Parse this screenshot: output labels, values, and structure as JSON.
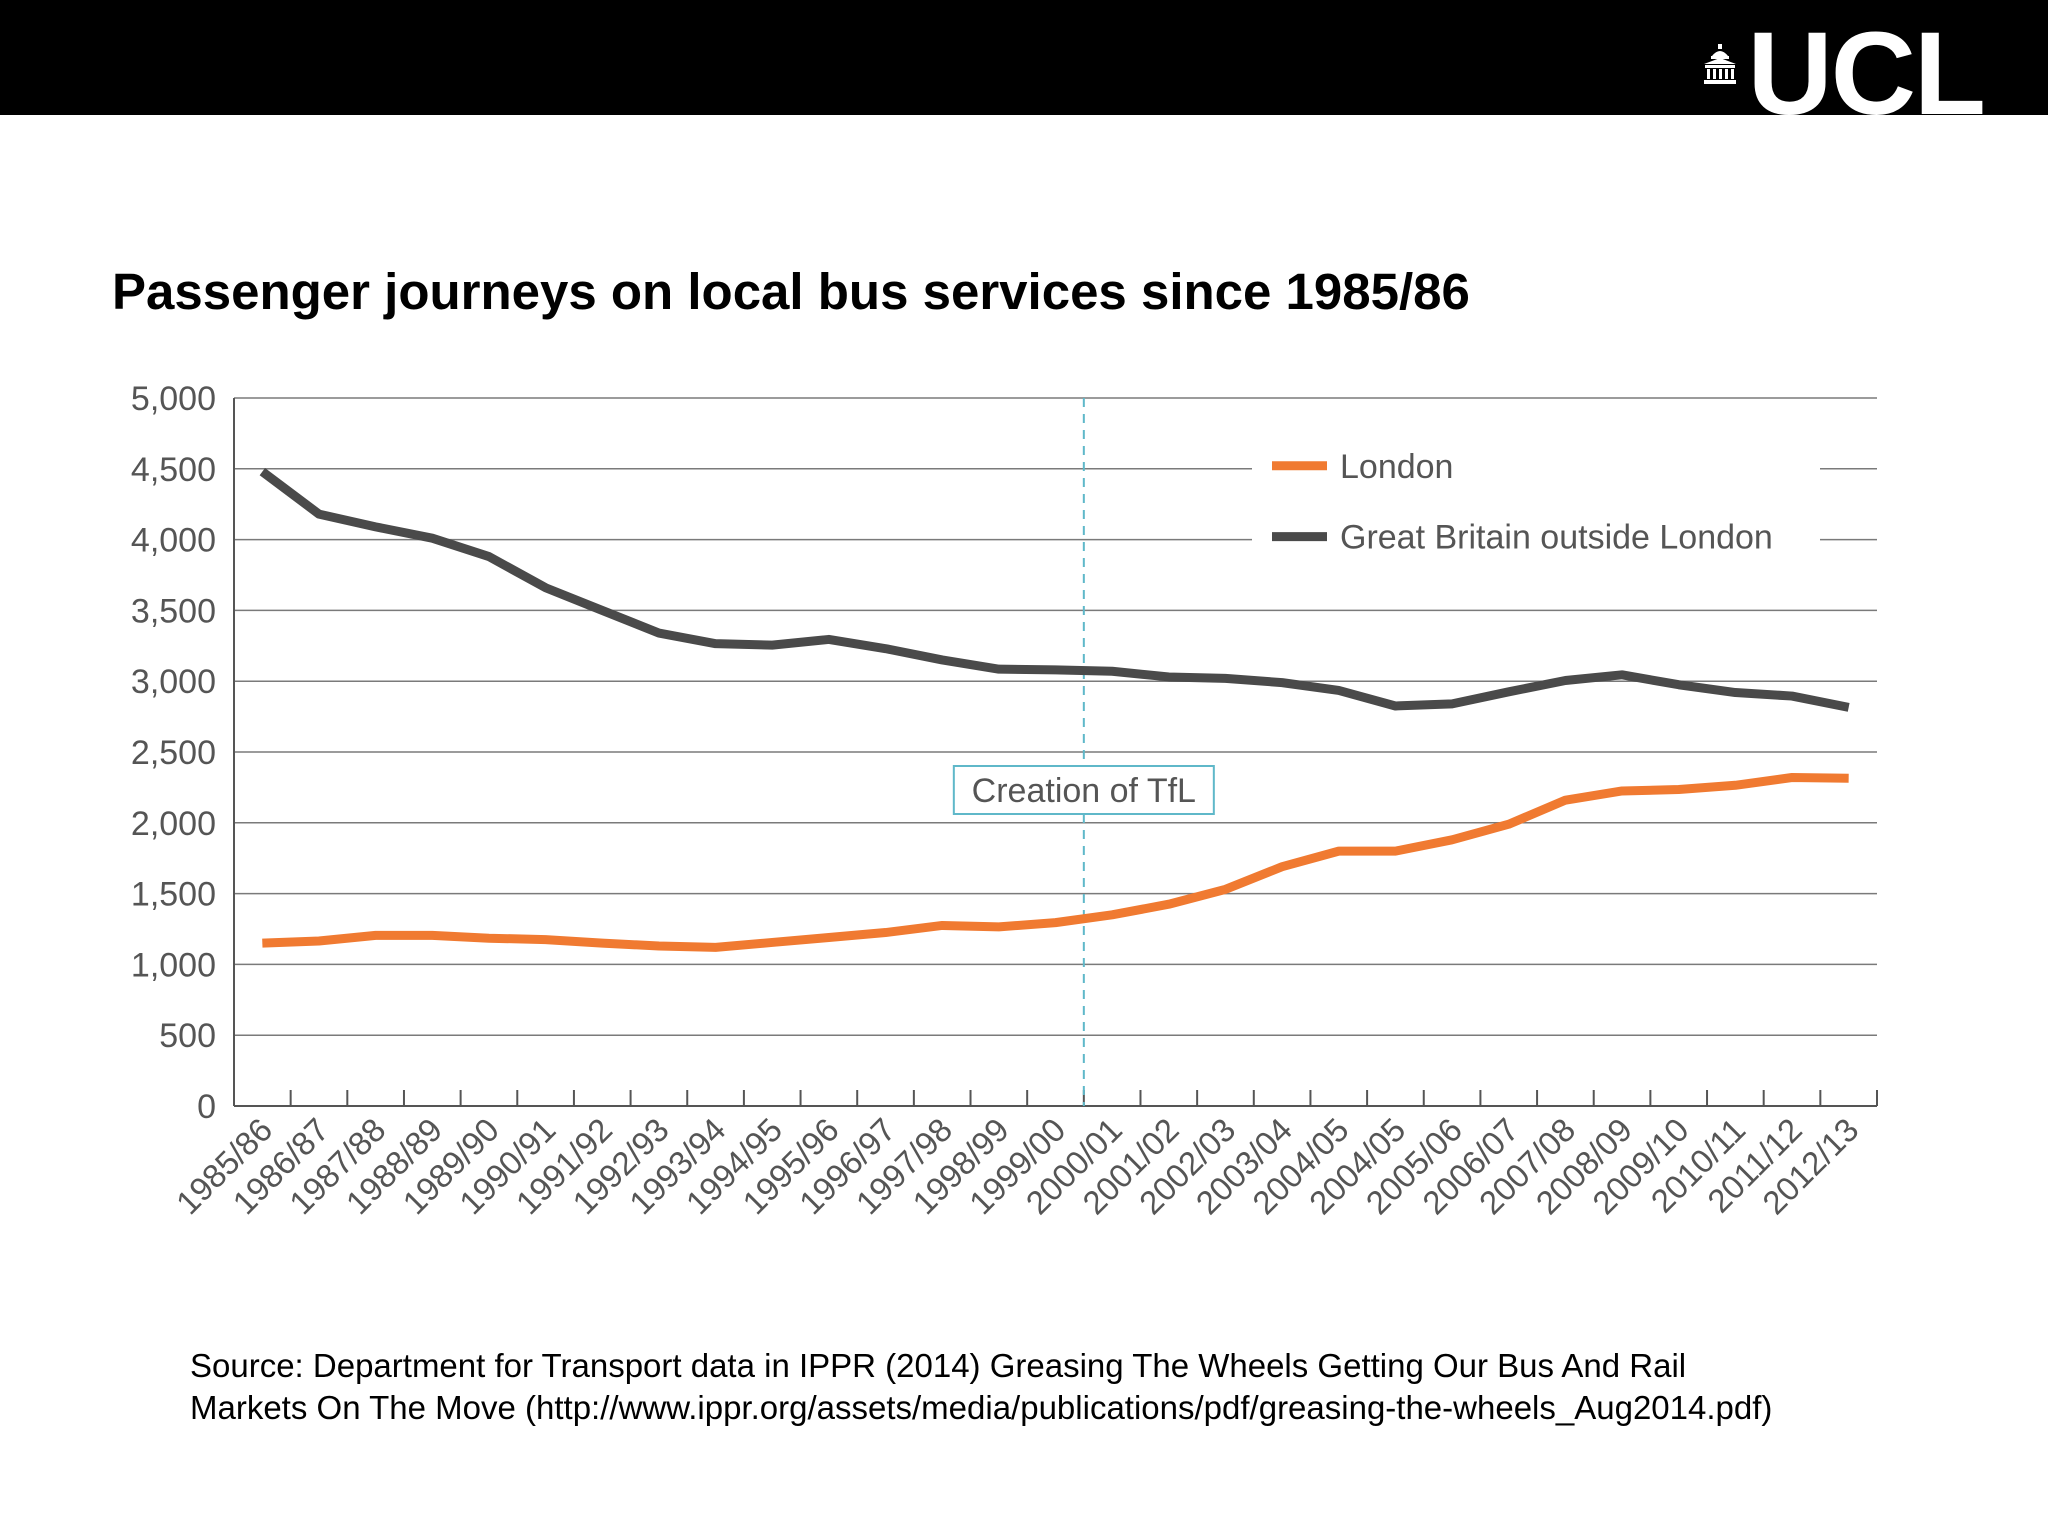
{
  "header": {
    "logo_text": "UCL",
    "logo_icon": "portico-icon"
  },
  "colors": {
    "header_bg": "#000000",
    "london": "#F07A31",
    "gb_outside_london": "#4A4A4A",
    "grid": "#7A7A7A",
    "tfl_marker": "#5FB8C9"
  },
  "chart_data": {
    "type": "line",
    "title": "Passenger journeys on local bus services since 1985/86",
    "xlabel": "",
    "ylabel": "",
    "ylim": [
      0,
      5000
    ],
    "yticks": [
      "0",
      "500",
      "1,000",
      "1,500",
      "2,000",
      "2,500",
      "3,000",
      "3,500",
      "4,000",
      "4,500",
      "5,000"
    ],
    "ytick_values": [
      0,
      500,
      1000,
      1500,
      2000,
      2500,
      3000,
      3500,
      4000,
      4500,
      5000
    ],
    "grid": true,
    "legend_position": "top-right",
    "categories": [
      "1985/86",
      "1986/87",
      "1987/88",
      "1988/89",
      "1989/90",
      "1990/91",
      "1991/92",
      "1992/93",
      "1993/94",
      "1994/95",
      "1995/96",
      "1996/97",
      "1997/98",
      "1998/99",
      "1999/00",
      "2000/01",
      "2001/02",
      "2002/03",
      "2003/04",
      "2004/05",
      "2004/05",
      "2005/06",
      "2006/07",
      "2007/08",
      "2008/09",
      "2009/10",
      "2010/11",
      "2011/12",
      "2012/13"
    ],
    "series": [
      {
        "name": "London",
        "values": [
          1150,
          1165,
          1205,
          1205,
          1185,
          1175,
          1150,
          1130,
          1120,
          1155,
          1190,
          1225,
          1275,
          1265,
          1295,
          1350,
          1425,
          1530,
          1690,
          1800,
          1800,
          1880,
          1990,
          2160,
          2225,
          2235,
          2265,
          2320,
          2315
        ]
      },
      {
        "name": "Great Britain outside London",
        "values": [
          4480,
          4180,
          4090,
          4010,
          3880,
          3660,
          3500,
          3340,
          3265,
          3255,
          3295,
          3230,
          3150,
          3085,
          3080,
          3070,
          3030,
          3020,
          2990,
          2935,
          2825,
          2840,
          2925,
          3005,
          3045,
          2975,
          2920,
          2895,
          2815
        ]
      }
    ],
    "annotations": [
      {
        "text": "Creation of TfL",
        "x": "1999/00"
      }
    ]
  },
  "source": {
    "line1": "Source: Department for Transport data in IPPR (2014) Greasing  The Wheels Getting Our Bus And Rail",
    "line2": "Markets On The Move (http://www.ippr.org/assets/media/publications/pdf/greasing-the-wheels_Aug2014.pdf)"
  }
}
